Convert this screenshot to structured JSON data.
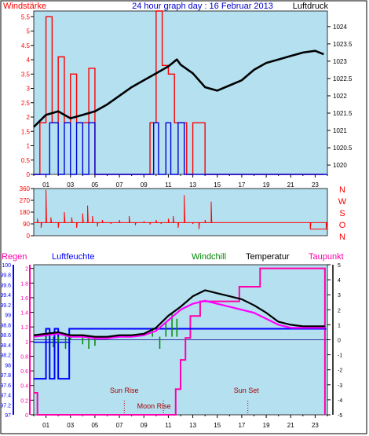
{
  "header": {
    "left_label": "Windstärke",
    "title": "24 hour graph day : 16 Februar 2013",
    "right_label": "Luftdruck"
  },
  "panel_labels": {
    "regen": "Regen",
    "luftfeuchte": "Luftfeuchte",
    "windchill": "Windchill",
    "temperatur": "Temperatur",
    "taupunkt": "Taupunkt"
  },
  "annotations": {
    "sun_rise": "Sun Rise",
    "moon_rise": "Moon Rise",
    "sun_set": "Sun Set"
  },
  "colors": {
    "panel_bg": "#b4e0f0",
    "wind": "#ff0000",
    "gust": "#0000dd",
    "pressure": "#000000",
    "direction": "#ff0000",
    "humidity": "#0000ff",
    "windchill": "#008800",
    "temperature": "#000000",
    "dewpoint": "#ff00ff",
    "rain": "#ff00aa"
  },
  "chart_data": [
    {
      "type": "line",
      "name": "wind-pressure",
      "x_ticks": [
        "01",
        "03",
        "05",
        "07",
        "09",
        "11",
        "13",
        "15",
        "17",
        "19",
        "21",
        "23"
      ],
      "y_left_ticks": [
        "0",
        "0.5",
        "1",
        "1.5",
        "2",
        "2.5",
        "3",
        "3.5",
        "4",
        "4.5",
        "5",
        "5.5"
      ],
      "y_right_ticks": [
        "1020",
        "1020.5",
        "1021",
        "1021.5",
        "1022",
        "1022.5",
        "1023",
        "1023.5",
        "1024"
      ],
      "ylim_left": [
        0,
        5.7
      ],
      "ylim_right": [
        1019.73,
        1024.45
      ],
      "pressure_series": {
        "x": [
          0,
          1,
          2,
          3,
          4,
          5,
          6,
          7,
          8,
          9,
          10,
          11,
          11.7,
          12,
          13,
          14,
          15,
          16,
          17,
          18,
          19,
          20,
          21,
          22,
          23,
          23.7
        ],
        "y": [
          1021.1,
          1021.45,
          1021.55,
          1021.35,
          1021.45,
          1021.55,
          1021.75,
          1022.0,
          1022.25,
          1022.45,
          1022.65,
          1022.85,
          1023.05,
          1022.9,
          1022.65,
          1022.25,
          1022.15,
          1022.3,
          1022.45,
          1022.75,
          1022.95,
          1023.05,
          1023.15,
          1023.25,
          1023.3,
          1023.2
        ]
      },
      "wind_series": {
        "x": [
          0,
          0.5,
          1,
          1.5,
          2,
          2.5,
          3,
          3.5,
          4,
          4.5,
          5,
          5.5,
          6,
          7,
          8,
          9,
          9.5,
          10,
          10.5,
          11,
          11.5,
          12,
          12.5,
          13,
          14,
          15,
          16,
          18,
          20,
          22,
          23.7
        ],
        "y": [
          0,
          1.8,
          5.5,
          1.8,
          4.1,
          1.8,
          3.5,
          1.8,
          1.8,
          3.7,
          0,
          0,
          0,
          0,
          0,
          0,
          1.8,
          5.7,
          3.8,
          3.5,
          1.8,
          1.8,
          0,
          1.8,
          0,
          0,
          0,
          0,
          0,
          0,
          0
        ]
      },
      "gust_series": {
        "x": [
          0,
          1,
          1.3,
          2,
          2.5,
          3,
          3.5,
          4,
          4.5,
          5,
          6,
          9,
          9.8,
          10.2,
          10.8,
          11.2,
          11.8,
          12.3,
          13,
          24
        ],
        "y": [
          0,
          0,
          1.8,
          0,
          1.8,
          0,
          1.8,
          0,
          1.8,
          0,
          0,
          0,
          1.8,
          0,
          1.8,
          0,
          1.8,
          0,
          0,
          0
        ]
      }
    },
    {
      "type": "scatter",
      "name": "wind-direction",
      "y_left_ticks": [
        "0",
        "90",
        "180",
        "270",
        "360"
      ],
      "y_right_labels": [
        "N",
        "W",
        "S",
        "O",
        "N"
      ],
      "ylim": [
        0,
        360
      ],
      "baseline": 100,
      "x": [
        0.3,
        0.6,
        1.0,
        1.4,
        2.0,
        2.5,
        3.1,
        3.5,
        4.0,
        4.4,
        4.8,
        5.2,
        5.6,
        6.3,
        7.0,
        7.8,
        8.3,
        9.0,
        9.5,
        10.0,
        10.4,
        11.0,
        11.4,
        11.8,
        12.3,
        13.0,
        13.5,
        14.0,
        14.5,
        20.0,
        22.6,
        23.9
      ],
      "y": [
        130,
        60,
        350,
        140,
        60,
        180,
        140,
        60,
        170,
        230,
        150,
        70,
        120,
        90,
        120,
        150,
        80,
        110,
        85,
        120,
        90,
        130,
        150,
        60,
        310,
        90,
        50,
        120,
        260,
        100,
        50,
        50
      ]
    },
    {
      "type": "line",
      "name": "humidity-temperature-rain",
      "x_ticks": [
        "01",
        "03",
        "05",
        "07",
        "09",
        "11",
        "13",
        "15",
        "17",
        "19",
        "21",
        "23"
      ],
      "y_left_humidity_ticks": [
        "97",
        "97.2",
        "97.4",
        "97.6",
        "97.8",
        "98",
        "98.2",
        "98.4",
        "98.6",
        "98.8",
        "99",
        "99.2",
        "99.4",
        "99.6",
        "99.8",
        "100"
      ],
      "y_left_rain_ticks": [
        "0",
        "0.2",
        "0.4",
        "0.6",
        "0.8",
        "1",
        "1.2",
        "1.4",
        "1.6",
        "1.8",
        "2"
      ],
      "y_right_ticks": [
        "-5",
        "-4",
        "-3",
        "-2",
        "-1",
        "0",
        "1",
        "2",
        "3",
        "4",
        "5"
      ],
      "ylim_temperature": [
        -5,
        5
      ],
      "ylim_humidity": [
        97,
        100
      ],
      "ylim_rain": [
        0,
        2.05
      ],
      "temperature_series": {
        "x": [
          0,
          1,
          2,
          3,
          4,
          5,
          6,
          7,
          8,
          9,
          10,
          11,
          12,
          13,
          14,
          15,
          16,
          17,
          18,
          19,
          20,
          21,
          22,
          23,
          23.8
        ],
        "y": [
          0.3,
          0.4,
          0.5,
          0.3,
          0.3,
          0.2,
          0.2,
          0.3,
          0.3,
          0.4,
          0.8,
          1.6,
          2.2,
          2.9,
          3.3,
          3.1,
          2.9,
          2.7,
          2.3,
          1.8,
          1.2,
          1.0,
          0.9,
          0.9,
          0.9
        ]
      },
      "dewpoint_series": {
        "x": [
          0,
          1,
          2,
          3,
          4,
          5,
          6,
          7,
          8,
          9,
          10,
          11,
          12,
          13,
          14,
          15,
          16,
          17,
          18,
          19,
          20,
          21,
          22,
          23,
          23.8
        ],
        "y": [
          0.2,
          0.3,
          0.4,
          0.2,
          0.2,
          0.1,
          0.1,
          0.2,
          0.2,
          0.3,
          0.6,
          1.3,
          2.0,
          2.4,
          2.6,
          2.4,
          2.2,
          2.0,
          1.8,
          1.4,
          1.0,
          0.8,
          0.8,
          0.8,
          0.8
        ]
      },
      "windchill_series": {
        "x": [
          1.0,
          1.6,
          2.0,
          2.6,
          3.0,
          4.0,
          4.5,
          5.0,
          9.7,
          10.3,
          10.8,
          11.3,
          11.7
        ],
        "y": [
          0.0,
          -0.5,
          -0.2,
          -0.6,
          0.0,
          -0.3,
          -0.6,
          -0.4,
          0.8,
          -0.6,
          1.2,
          1.8,
          1.4
        ]
      },
      "humidity_series": {
        "x": [
          0,
          1.0,
          1.0,
          1.3,
          1.3,
          1.7,
          1.7,
          2.0,
          2.0,
          2.9,
          2.9,
          23.9
        ],
        "y": [
          97.72,
          97.72,
          98.72,
          98.72,
          97.72,
          97.72,
          98.72,
          98.72,
          97.72,
          97.72,
          98.72,
          98.72
        ]
      },
      "humidity_level_2": 98.45,
      "rain_series": {
        "x": [
          0,
          0.3,
          0.3,
          11.6,
          11.6,
          12.0,
          12.0,
          12.4,
          12.4,
          12.8,
          12.8,
          13.6,
          13.6,
          16.8,
          16.8,
          18.5,
          18.5,
          23.8,
          23.8
        ],
        "y": [
          0.3,
          0.3,
          0,
          0,
          0.35,
          0.35,
          0.75,
          0.75,
          1.05,
          1.05,
          1.35,
          1.35,
          1.55,
          1.55,
          1.75,
          1.75,
          2.0,
          2.0,
          0
        ]
      },
      "sun_rise_hour": 7.4,
      "moon_rise_hour": 10.6,
      "sun_set_hour": 17.5
    }
  ]
}
